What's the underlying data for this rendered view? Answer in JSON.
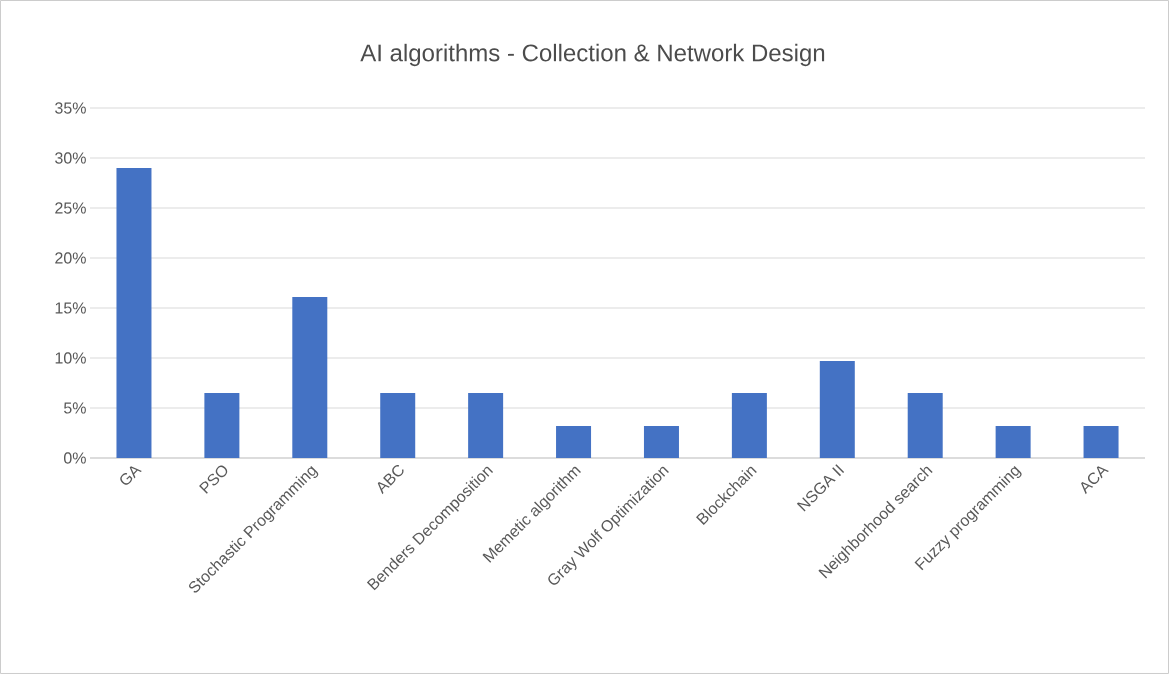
{
  "chart_data": {
    "type": "bar",
    "title": "AI algorithms - Collection & Network Design",
    "categories": [
      "GA",
      "PSO",
      "Stochastic Programming",
      "ABC",
      "Benders Decomposition",
      "Memetic algorithm",
      "Gray Wolf Optimization",
      "Blockchain",
      "NSGA II",
      "Neighborhood search",
      "Fuzzy programming",
      "ACA"
    ],
    "values": [
      29.0,
      6.5,
      16.1,
      6.5,
      6.5,
      3.2,
      3.2,
      6.5,
      9.7,
      6.5,
      3.2,
      3.2
    ],
    "color": "#4472c4",
    "ylim": [
      0,
      35
    ],
    "yticks": [
      {
        "value": 0,
        "label": "0%"
      },
      {
        "value": 5,
        "label": "5%"
      },
      {
        "value": 10,
        "label": "10%"
      },
      {
        "value": 15,
        "label": "15%"
      },
      {
        "value": 20,
        "label": "20%"
      },
      {
        "value": 25,
        "label": "25%"
      },
      {
        "value": 30,
        "label": "30%"
      },
      {
        "value": 35,
        "label": "35%"
      }
    ],
    "grid": "y"
  }
}
